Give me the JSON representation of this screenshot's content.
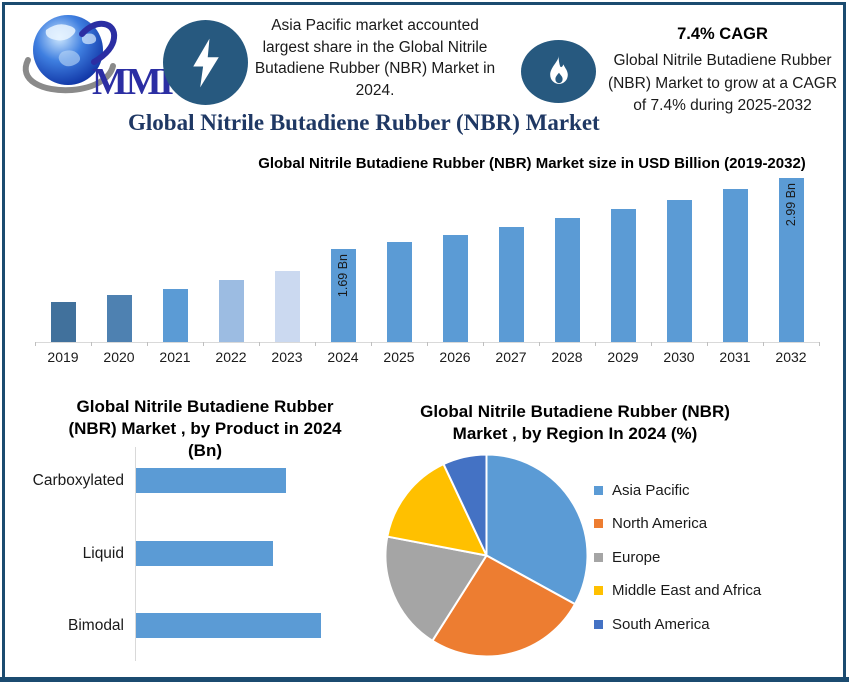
{
  "brand": {
    "logo_text": "MMR"
  },
  "header": {
    "highlight_left": "Asia Pacific market accounted largest share in the Global Nitrile Butadiene Rubber (NBR) Market in 2024.",
    "cagr_value": "7.4% CAGR",
    "cagr_description": "Global Nitrile Butadiene Rubber (NBR) Market to grow at a CAGR of 7.4% during 2025-2032",
    "main_title": "Global Nitrile Butadiene Rubber (NBR) Market"
  },
  "colors": {
    "border_navy": "#1B4B70",
    "badge_navy": "#27597F",
    "title_navy": "#1F3864",
    "primary_bar_blue": "#5B9BD5",
    "axis_gray": "#D9D9D9",
    "logo_blue": "#2B2EA3"
  },
  "chart_data": [
    {
      "id": "market-size-bar",
      "type": "bar",
      "title": "Global Nitrile Butadiene Rubber (NBR) Market  size in USD Billion (2019-2032)",
      "unit": "USD Billion",
      "categories": [
        "2019",
        "2020",
        "2021",
        "2022",
        "2023",
        "2024",
        "2025",
        "2026",
        "2027",
        "2028",
        "2029",
        "2030",
        "2031",
        "2032"
      ],
      "values": [
        0.73,
        0.85,
        0.96,
        1.13,
        1.29,
        1.69,
        1.82,
        1.95,
        2.09,
        2.25,
        2.41,
        2.59,
        2.78,
        2.99
      ],
      "data_labels": [
        null,
        null,
        null,
        null,
        null,
        "1.69 Bn",
        null,
        null,
        null,
        null,
        null,
        null,
        null,
        "2.99 Bn"
      ],
      "bar_colors": [
        "#41719C",
        "#4E81B1",
        "#5B9BD5",
        "#9CBCE2",
        "#CBD9F0",
        "#5B9BD5",
        "#5B9BD5",
        "#5B9BD5",
        "#5B9BD5",
        "#5B9BD5",
        "#5B9BD5",
        "#5B9BD5",
        "#5B9BD5",
        "#5B9BD5"
      ],
      "ylim": [
        0,
        3.2
      ],
      "grid": false,
      "legend": "none"
    },
    {
      "id": "product-bar",
      "type": "bar",
      "orientation": "horizontal",
      "title": "Global Nitrile Butadiene Rubber\n(NBR) Market , by Product in 2024\n(Bn)",
      "categories": [
        "Carboxylated",
        "Liquid",
        "Bimodal"
      ],
      "values": [
        0.81,
        0.74,
        1.0
      ],
      "value_note": "relative bar lengths; numeric axis not shown in figure",
      "bar_color": "#5B9BD5",
      "grid": false,
      "legend": "none"
    },
    {
      "id": "region-pie",
      "type": "pie",
      "title": "Global Nitrile Butadiene Rubber (NBR)\nMarket , by Region In 2024 (%)",
      "labels": [
        "Asia Pacific",
        "North America",
        "Europe",
        "Middle East and Africa",
        "South America"
      ],
      "values": [
        33,
        26,
        19,
        15,
        7
      ],
      "colors": [
        "#5B9BD5",
        "#ED7D31",
        "#A5A5A5",
        "#FFC000",
        "#4472C4"
      ],
      "legend_position": "right",
      "start_angle_deg": 0,
      "clockwise": true
    }
  ]
}
